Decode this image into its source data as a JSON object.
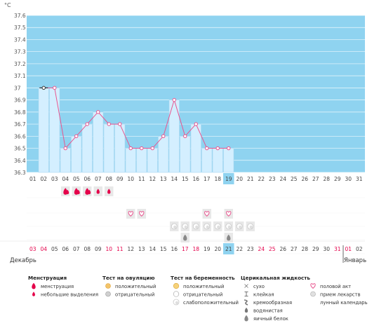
{
  "chart_data": {
    "type": "line",
    "title": "",
    "unit": "°C",
    "ylim": [
      36.3,
      37.6
    ],
    "ticks": [
      "36.3",
      "36.4",
      "36.5",
      "36.6",
      "36.7",
      "36.8",
      "36.9",
      "37",
      "37.1",
      "37.2",
      "37.3",
      "37.4",
      "37.5",
      "37.6"
    ],
    "days": [
      "01",
      "02",
      "03",
      "04",
      "05",
      "06",
      "07",
      "08",
      "09",
      "10",
      "11",
      "12",
      "13",
      "14",
      "15",
      "16",
      "17",
      "18",
      "19",
      "20",
      "21",
      "22",
      "23",
      "24",
      "25",
      "26",
      "27",
      "28",
      "29",
      "30",
      "31"
    ],
    "values": [
      null,
      37.0,
      37.0,
      36.5,
      36.6,
      36.7,
      36.8,
      36.7,
      36.7,
      36.5,
      36.5,
      36.5,
      36.6,
      36.9,
      36.6,
      36.7,
      36.5,
      36.5,
      36.5,
      null,
      null,
      null,
      null,
      null,
      null,
      null,
      null,
      null,
      null,
      null,
      null
    ],
    "highlight_day": "19",
    "grid": true
  },
  "symbols": {
    "menstruation": [
      3,
      4,
      5
    ],
    "light_bleeding": [
      6,
      7
    ],
    "intercourse": [
      9,
      10,
      16,
      18
    ],
    "pregnancy_weak": [
      13,
      14,
      15,
      16,
      17,
      18,
      19,
      20
    ],
    "egg_white": [
      14,
      18
    ]
  },
  "cycle": {
    "days": [
      "03",
      "04",
      "05",
      "06",
      "07",
      "08",
      "09",
      "10",
      "11",
      "12",
      "13",
      "14",
      "15",
      "16",
      "17",
      "18",
      "19",
      "20",
      "21",
      "22",
      "23",
      "24",
      "25",
      "26",
      "27",
      "28",
      "29",
      "30",
      "31",
      "01",
      "02"
    ],
    "red_days": [
      "03",
      "04",
      "10",
      "11",
      "17",
      "18",
      "24",
      "25",
      "31",
      "01"
    ],
    "today_index": 18,
    "month_left": "Декабрь",
    "month_right": "Январь"
  },
  "legend": {
    "groups": [
      {
        "title": "Менструация",
        "items": [
          {
            "icon": "drop-large-icon",
            "label": "менструация"
          },
          {
            "icon": "drop-small-icon",
            "label": "небольшие выделения"
          }
        ]
      },
      {
        "title": "Тест на овуляцию",
        "items": [
          {
            "icon": "sun-positive-icon",
            "label": "положительный"
          },
          {
            "icon": "sun-negative-icon",
            "label": "отрицательный"
          }
        ]
      },
      {
        "title": "Тест на беременность",
        "items": [
          {
            "icon": "circle-positive-icon",
            "label": "положительный"
          },
          {
            "icon": "circle-negative-icon",
            "label": "отрицательный"
          },
          {
            "icon": "circle-weak-icon",
            "label": "слабоположительный"
          }
        ]
      },
      {
        "title": "Церикальная жидкость",
        "items": [
          {
            "icon": "cross-icon",
            "label": "сухо"
          },
          {
            "icon": "sticky-icon",
            "label": "клейкая"
          },
          {
            "icon": "cream-icon",
            "label": "кремообразная"
          },
          {
            "icon": "water-drop-icon",
            "label": "водянистая"
          },
          {
            "icon": "egg-drop-icon",
            "label": "яичный белок"
          }
        ]
      },
      {
        "title": "",
        "items": [
          {
            "icon": "heart-icon",
            "label": "половой акт"
          },
          {
            "icon": "pill-icon",
            "label": "прием лекарств"
          },
          {
            "icon": "moon-icon",
            "label": "лунный календарь"
          }
        ]
      }
    ]
  },
  "colors": {
    "chart_bg": "#8fd3f0",
    "fill": "#d4efff",
    "fill_edge": "#a9d8f2",
    "line": "#e8558f",
    "highlight": "#8fd3f0",
    "red": "#e4004a"
  }
}
